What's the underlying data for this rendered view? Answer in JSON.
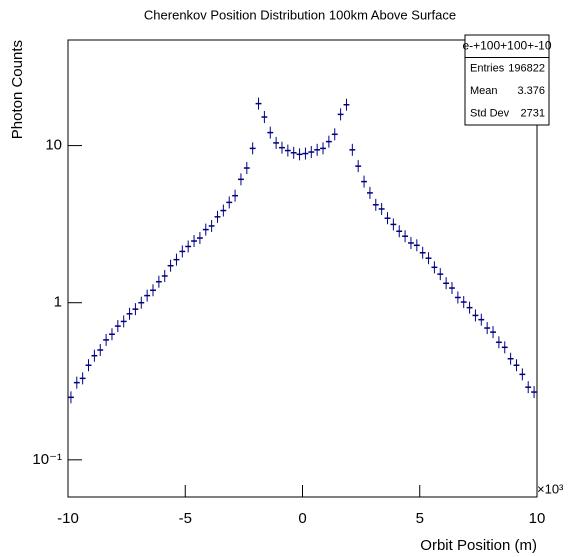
{
  "chart_data": {
    "type": "histogram",
    "title": "Cherenkov Position Distribution 100km Above Surface",
    "x_label": "Orbit Position (m)",
    "y_label": "Photon Counts",
    "x_multiplier": "×10³",
    "log_y": true,
    "color": "#000080",
    "xlim": [
      -10,
      10
    ],
    "xticks": [
      -10,
      -5,
      0,
      5,
      10
    ],
    "ylim": [
      0.058,
      47
    ],
    "yticks": [
      {
        "value": 0.1,
        "label": "10⁻¹"
      },
      1,
      10
    ],
    "bins": [
      -10,
      -9.75,
      -9.5,
      -9.25,
      -9,
      -8.75,
      -8.5,
      -8.25,
      -8,
      -7.75,
      -7.5,
      -7.25,
      -7,
      -6.75,
      -6.5,
      -6.25,
      -6,
      -5.75,
      -5.5,
      -5.25,
      -5,
      -4.75,
      -4.5,
      -4.25,
      -4,
      -3.75,
      -3.5,
      -3.25,
      -3,
      -2.75,
      -2.5,
      -2.25,
      -2,
      -1.75,
      -1.5,
      -1.25,
      -1,
      -0.75,
      -0.5,
      -0.25,
      0,
      0.25,
      0.5,
      0.75,
      1,
      1.25,
      1.5,
      1.75,
      2,
      2.25,
      2.5,
      2.75,
      3,
      3.25,
      3.5,
      3.75,
      4,
      4.25,
      4.5,
      4.75,
      5,
      5.25,
      5.5,
      5.75,
      6,
      6.25,
      6.5,
      6.75,
      7,
      7.25,
      7.5,
      7.75,
      8,
      8.25,
      8.5,
      8.75,
      9,
      9.25,
      9.5,
      9.75,
      10
    ],
    "values": [
      0.25,
      0.31,
      0.33,
      0.4,
      0.46,
      0.5,
      0.58,
      0.63,
      0.71,
      0.76,
      0.85,
      0.91,
      1.0,
      1.11,
      1.2,
      1.36,
      1.48,
      1.72,
      1.88,
      2.12,
      2.28,
      2.47,
      2.58,
      2.92,
      3.08,
      3.52,
      3.86,
      4.35,
      4.8,
      6.1,
      7.2,
      9.6,
      18.5,
      15.2,
      12.1,
      10.4,
      9.7,
      9.3,
      9.0,
      8.8,
      8.9,
      9.1,
      9.4,
      9.6,
      10.6,
      11.8,
      15.8,
      18.2,
      9.4,
      7.4,
      5.9,
      5.0,
      4.2,
      3.95,
      3.45,
      3.15,
      2.85,
      2.65,
      2.4,
      2.32,
      2.08,
      1.92,
      1.68,
      1.52,
      1.33,
      1.24,
      1.08,
      1.01,
      0.93,
      0.83,
      0.78,
      0.69,
      0.65,
      0.56,
      0.52,
      0.44,
      0.4,
      0.35,
      0.29,
      0.27
    ],
    "stats": {
      "title": "e-+100+100+-10",
      "rows": [
        {
          "name": "Entries",
          "value": 196822
        },
        {
          "name": "Mean",
          "value": 3.376
        },
        {
          "name": "Std Dev",
          "value": 2731
        }
      ]
    }
  }
}
